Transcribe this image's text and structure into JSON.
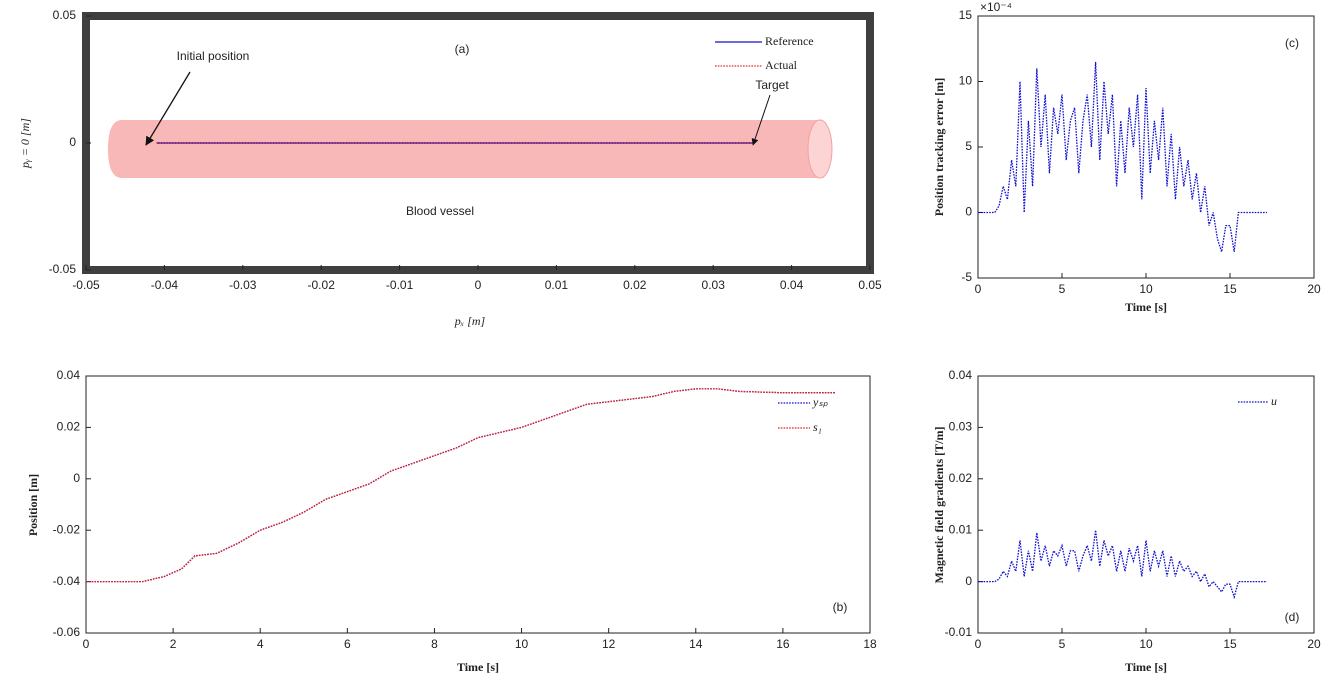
{
  "chart_data": [
    {
      "type": "line",
      "xlabel": "pₓ [m]",
      "ylabel": "pᵧ = 0 [m]",
      "x": [
        -0.041,
        0.035
      ],
      "series": [
        {
          "name": "Reference",
          "color": "#1010c0",
          "values": [
            0,
            0
          ]
        },
        {
          "name": "Actual",
          "color": "#e03030",
          "values": [
            0,
            0
          ]
        }
      ],
      "xlim": [
        -0.05,
        0.05
      ],
      "xticks": [
        -0.05,
        -0.04,
        -0.03,
        -0.02,
        -0.01,
        0,
        0.01,
        0.02,
        0.03,
        0.04,
        0.05
      ],
      "ylim": [
        -0.05,
        0.05
      ],
      "yticks": [
        -0.05,
        0,
        0.05
      ],
      "annotations": [
        "(a)",
        "Initial position",
        "Target",
        "Blood vessel"
      ]
    },
    {
      "type": "line",
      "xlabel": "Time [s]",
      "ylabel": "Position [m]",
      "x": [
        0,
        1.3,
        1.8,
        2.2,
        2.5,
        3,
        3.5,
        4,
        4.5,
        5,
        5.5,
        6,
        6.5,
        7,
        7.5,
        8,
        8.5,
        9,
        9.5,
        10,
        10.5,
        11,
        11.5,
        12,
        12.5,
        13,
        13.5,
        14,
        14.5,
        15,
        16,
        17.2
      ],
      "series": [
        {
          "name": "yₛₚ",
          "color": "#1010d0",
          "values": [
            -0.04,
            -0.04,
            -0.038,
            -0.035,
            -0.03,
            -0.029,
            -0.025,
            -0.02,
            -0.017,
            -0.013,
            -0.008,
            -0.005,
            -0.002,
            0.003,
            0.006,
            0.009,
            0.012,
            0.016,
            0.018,
            0.02,
            0.023,
            0.026,
            0.029,
            0.03,
            0.031,
            0.032,
            0.034,
            0.035,
            0.035,
            0.034,
            0.0335,
            0.0335
          ]
        },
        {
          "name": "s₁",
          "color": "#e02020",
          "values": [
            -0.04,
            -0.04,
            -0.038,
            -0.035,
            -0.03,
            -0.029,
            -0.025,
            -0.02,
            -0.017,
            -0.013,
            -0.008,
            -0.005,
            -0.002,
            0.003,
            0.006,
            0.009,
            0.012,
            0.016,
            0.018,
            0.02,
            0.023,
            0.026,
            0.029,
            0.03,
            0.031,
            0.032,
            0.034,
            0.035,
            0.035,
            0.034,
            0.0335,
            0.0335
          ]
        }
      ],
      "xlim": [
        0,
        18
      ],
      "xticks": [
        0,
        2,
        4,
        6,
        8,
        10,
        12,
        14,
        16,
        18
      ],
      "ylim": [
        -0.06,
        0.04
      ],
      "yticks": [
        -0.06,
        -0.04,
        -0.02,
        0,
        0.02,
        0.04
      ],
      "annotations": [
        "(b)"
      ]
    },
    {
      "type": "line",
      "xlabel": "Time [s]",
      "ylabel": "Position tracking error [m]",
      "y_exponent": "×10⁻⁴",
      "x": [
        0,
        1,
        1.25,
        1.5,
        1.75,
        2,
        2.25,
        2.5,
        2.75,
        3,
        3.25,
        3.5,
        3.75,
        4,
        4.25,
        4.5,
        4.75,
        5,
        5.25,
        5.5,
        5.75,
        6,
        6.25,
        6.5,
        6.75,
        7,
        7.25,
        7.5,
        7.75,
        8,
        8.25,
        8.5,
        8.75,
        9,
        9.25,
        9.5,
        9.75,
        10,
        10.25,
        10.5,
        10.75,
        11,
        11.25,
        11.5,
        11.75,
        12,
        12.25,
        12.5,
        12.75,
        13,
        13.25,
        13.5,
        13.75,
        14,
        14.25,
        14.5,
        14.75,
        15,
        15.25,
        15.5,
        15.75,
        16,
        17.2
      ],
      "color": "#1010d0",
      "values": [
        0,
        0,
        0.5,
        2,
        1,
        4,
        2,
        10,
        0,
        7,
        2,
        11,
        5,
        9,
        3,
        8,
        6,
        9,
        4,
        7,
        8,
        3,
        7,
        9,
        5,
        11.5,
        4,
        10,
        6,
        9,
        2,
        7,
        3,
        8,
        5,
        9,
        1,
        9.5,
        3,
        7,
        4,
        8,
        2,
        6,
        1,
        5,
        2,
        4,
        1,
        3,
        0,
        2,
        -1,
        0,
        -2,
        -3,
        -1,
        -1,
        -3,
        0,
        0,
        0,
        0
      ],
      "xlim": [
        0,
        20
      ],
      "xticks": [
        0,
        5,
        10,
        15,
        20
      ],
      "ylim": [
        -5,
        15
      ],
      "yticks": [
        -5,
        0,
        5,
        10,
        15
      ],
      "annotations": [
        "(c)"
      ]
    },
    {
      "type": "line",
      "xlabel": "Time [s]",
      "ylabel": "Magnetic field gradients [T/m]",
      "x": [
        0,
        1,
        1.25,
        1.5,
        1.75,
        2,
        2.25,
        2.5,
        2.75,
        3,
        3.25,
        3.5,
        3.75,
        4,
        4.25,
        4.5,
        4.75,
        5,
        5.25,
        5.5,
        5.75,
        6,
        6.25,
        6.5,
        6.75,
        7,
        7.25,
        7.5,
        7.75,
        8,
        8.25,
        8.5,
        8.75,
        9,
        9.25,
        9.5,
        9.75,
        10,
        10.25,
        10.5,
        10.75,
        11,
        11.25,
        11.5,
        11.75,
        12,
        12.25,
        12.5,
        12.75,
        13,
        13.25,
        13.5,
        13.75,
        14,
        14.25,
        14.5,
        14.75,
        15,
        15.25,
        15.5,
        15.75,
        16,
        17.2
      ],
      "series": [
        {
          "name": "u",
          "color": "#1010d0",
          "values": [
            0,
            0,
            0.0005,
            0.002,
            0.001,
            0.004,
            0.002,
            0.008,
            0.001,
            0.006,
            0.002,
            0.0095,
            0.004,
            0.007,
            0.003,
            0.006,
            0.005,
            0.007,
            0.003,
            0.006,
            0.006,
            0.002,
            0.005,
            0.007,
            0.004,
            0.01,
            0.003,
            0.008,
            0.005,
            0.007,
            0.002,
            0.006,
            0.002,
            0.0065,
            0.004,
            0.007,
            0.001,
            0.008,
            0.002,
            0.006,
            0.003,
            0.006,
            0.001,
            0.005,
            0.001,
            0.004,
            0.002,
            0.003,
            0.001,
            0.002,
            0,
            0.0015,
            -0.001,
            0,
            -0.001,
            -0.002,
            -0.0005,
            -0.0005,
            -0.003,
            0,
            0,
            0,
            0
          ]
        }
      ],
      "xlim": [
        0,
        20
      ],
      "xticks": [
        0,
        5,
        10,
        15,
        20
      ],
      "ylim": [
        -0.01,
        0.04
      ],
      "yticks": [
        -0.01,
        0,
        0.01,
        0.02,
        0.03,
        0.04
      ],
      "annotations": [
        "(d)"
      ]
    }
  ]
}
